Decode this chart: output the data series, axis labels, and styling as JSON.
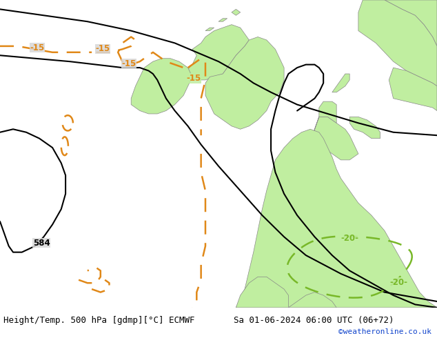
{
  "title_left": "Height/Temp. 500 hPa [gdmp][°C] ECMWF",
  "title_right": "Sa 01-06-2024 06:00 UTC (06+72)",
  "credit": "©weatheronline.co.uk",
  "bg_color": "#d8d8d8",
  "land_color": "#c0eea0",
  "land_border_color": "#888888",
  "black_color": "#000000",
  "orange_color": "#e08818",
  "green_color": "#78b828",
  "bottom_bar_color": "#ffffff",
  "title_fontsize": 9,
  "credit_fontsize": 8,
  "label_fontsize": 8.5
}
